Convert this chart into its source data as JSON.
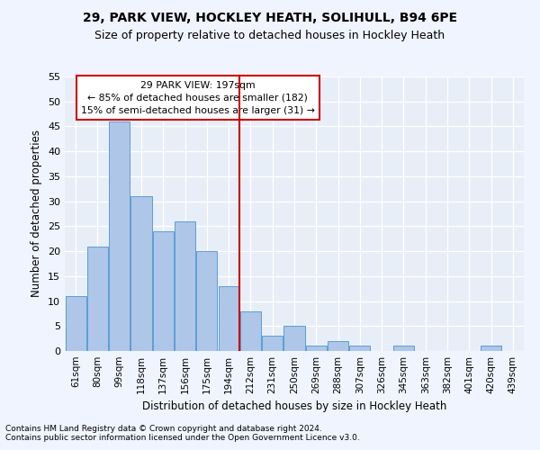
{
  "title1": "29, PARK VIEW, HOCKLEY HEATH, SOLIHULL, B94 6PE",
  "title2": "Size of property relative to detached houses in Hockley Heath",
  "xlabel": "Distribution of detached houses by size in Hockley Heath",
  "ylabel": "Number of detached properties",
  "footnote1": "Contains HM Land Registry data © Crown copyright and database right 2024.",
  "footnote2": "Contains public sector information licensed under the Open Government Licence v3.0.",
  "annotation_line1": "29 PARK VIEW: 197sqm",
  "annotation_line2": "← 85% of detached houses are smaller (182)",
  "annotation_line3": "15% of semi-detached houses are larger (31) →",
  "bar_categories": [
    "61sqm",
    "80sqm",
    "99sqm",
    "118sqm",
    "137sqm",
    "156sqm",
    "175sqm",
    "194sqm",
    "212sqm",
    "231sqm",
    "250sqm",
    "269sqm",
    "288sqm",
    "307sqm",
    "326sqm",
    "345sqm",
    "363sqm",
    "382sqm",
    "401sqm",
    "420sqm",
    "439sqm"
  ],
  "bar_values": [
    11,
    21,
    46,
    31,
    24,
    26,
    20,
    13,
    8,
    3,
    5,
    1,
    2,
    1,
    0,
    1,
    0,
    0,
    0,
    1,
    0
  ],
  "bar_color": "#aec6e8",
  "bar_edgecolor": "#5a9fd4",
  "vline_x": 7.5,
  "vline_color": "#cc0000",
  "fig_facecolor": "#f0f4ff",
  "ax_facecolor": "#e8eef8",
  "grid_color": "#ffffff",
  "annotation_box_color": "#cc0000",
  "ylim": [
    0,
    55
  ],
  "yticks": [
    0,
    5,
    10,
    15,
    20,
    25,
    30,
    35,
    40,
    45,
    50,
    55
  ]
}
